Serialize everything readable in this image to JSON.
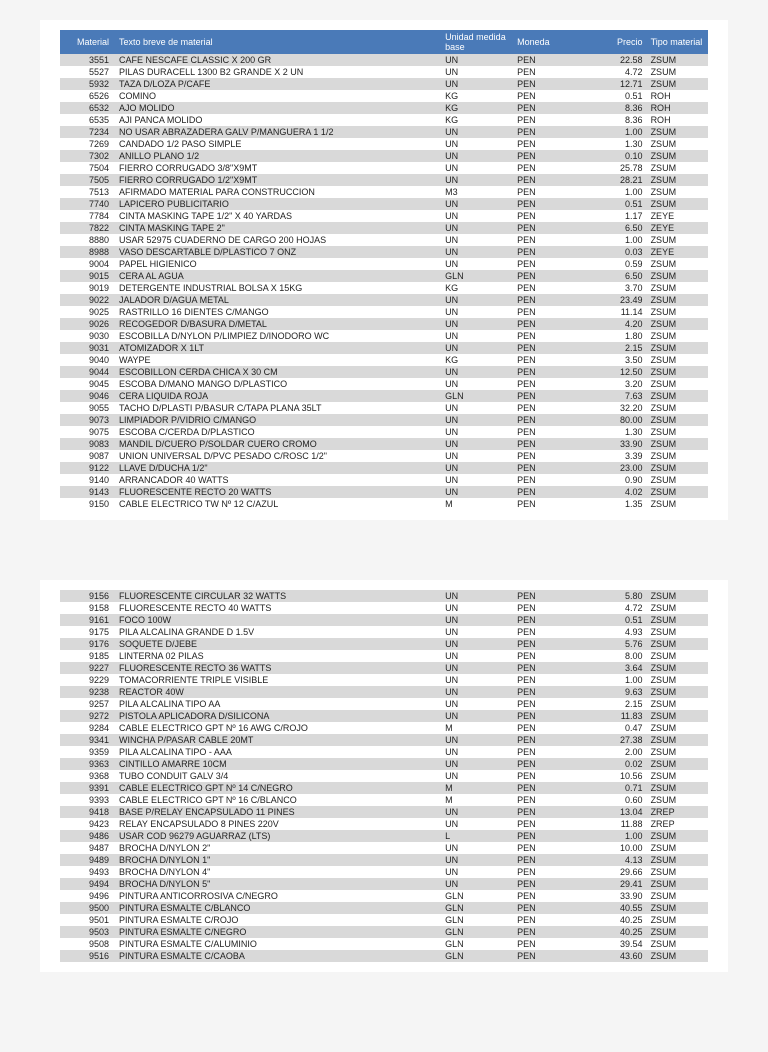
{
  "headers": {
    "material": "Material",
    "texto": "Texto breve de material",
    "unidad": "Unidad medida base",
    "moneda": "Moneda",
    "precio": "Precio",
    "tipo": "Tipo material"
  },
  "section1": [
    {
      "mat": "3551",
      "desc": "CAFE NESCAFE CLASSIC X 200 GR",
      "um": "UN",
      "mon": "PEN",
      "precio": "22.58",
      "tipo": "ZSUM"
    },
    {
      "mat": "5527",
      "desc": "PILAS DURACELL 1300 B2 GRANDE X 2 UN",
      "um": "UN",
      "mon": "PEN",
      "precio": "4.72",
      "tipo": "ZSUM"
    },
    {
      "mat": "5932",
      "desc": "TAZA D/LOZA P/CAFE",
      "um": "UN",
      "mon": "PEN",
      "precio": "12.71",
      "tipo": "ZSUM"
    },
    {
      "mat": "6526",
      "desc": "COMINO",
      "um": "KG",
      "mon": "PEN",
      "precio": "0.51",
      "tipo": "ROH"
    },
    {
      "mat": "6532",
      "desc": "AJO MOLIDO",
      "um": "KG",
      "mon": "PEN",
      "precio": "8.36",
      "tipo": "ROH"
    },
    {
      "mat": "6535",
      "desc": "AJI PANCA MOLIDO",
      "um": "KG",
      "mon": "PEN",
      "precio": "8.36",
      "tipo": "ROH"
    },
    {
      "mat": "7234",
      "desc": "NO USAR ABRAZADERA GALV P/MANGUERA 1 1/2",
      "um": "UN",
      "mon": "PEN",
      "precio": "1.00",
      "tipo": "ZSUM"
    },
    {
      "mat": "7269",
      "desc": "CANDADO 1/2 PASO SIMPLE",
      "um": "UN",
      "mon": "PEN",
      "precio": "1.30",
      "tipo": "ZSUM"
    },
    {
      "mat": "7302",
      "desc": "ANILLO PLANO 1/2",
      "um": "UN",
      "mon": "PEN",
      "precio": "0.10",
      "tipo": "ZSUM"
    },
    {
      "mat": "7504",
      "desc": "FIERRO CORRUGADO 3/8\"X9MT",
      "um": "UN",
      "mon": "PEN",
      "precio": "25.78",
      "tipo": "ZSUM"
    },
    {
      "mat": "7505",
      "desc": "FIERRO CORRUGADO 1/2\"X9MT",
      "um": "UN",
      "mon": "PEN",
      "precio": "28.21",
      "tipo": "ZSUM"
    },
    {
      "mat": "7513",
      "desc": "AFIRMADO MATERIAL PARA CONSTRUCCION",
      "um": "M3",
      "mon": "PEN",
      "precio": "1.00",
      "tipo": "ZSUM"
    },
    {
      "mat": "7740",
      "desc": "LAPICERO PUBLICITARIO",
      "um": "UN",
      "mon": "PEN",
      "precio": "0.51",
      "tipo": "ZSUM"
    },
    {
      "mat": "7784",
      "desc": "CINTA MASKING TAPE 1/2\" X 40 YARDAS",
      "um": "UN",
      "mon": "PEN",
      "precio": "1.17",
      "tipo": "ZEYE"
    },
    {
      "mat": "7822",
      "desc": "CINTA MASKING TAPE 2\"",
      "um": "UN",
      "mon": "PEN",
      "precio": "6.50",
      "tipo": "ZEYE"
    },
    {
      "mat": "8880",
      "desc": "USAR 52975 CUADERNO DE CARGO 200 HOJAS",
      "um": "UN",
      "mon": "PEN",
      "precio": "1.00",
      "tipo": "ZSUM"
    },
    {
      "mat": "8988",
      "desc": "VASO DESCARTABLE D/PLASTICO 7 ONZ",
      "um": "UN",
      "mon": "PEN",
      "precio": "0.03",
      "tipo": "ZEYE"
    },
    {
      "mat": "9004",
      "desc": "PAPEL HIGIENICO",
      "um": "UN",
      "mon": "PEN",
      "precio": "0.59",
      "tipo": "ZSUM"
    },
    {
      "mat": "9015",
      "desc": "CERA AL AGUA",
      "um": "GLN",
      "mon": "PEN",
      "precio": "6.50",
      "tipo": "ZSUM"
    },
    {
      "mat": "9019",
      "desc": "DETERGENTE INDUSTRIAL BOLSA X 15KG",
      "um": "KG",
      "mon": "PEN",
      "precio": "3.70",
      "tipo": "ZSUM"
    },
    {
      "mat": "9022",
      "desc": "JALADOR D/AGUA METAL",
      "um": "UN",
      "mon": "PEN",
      "precio": "23.49",
      "tipo": "ZSUM"
    },
    {
      "mat": "9025",
      "desc": "RASTRILLO 16 DIENTES C/MANGO",
      "um": "UN",
      "mon": "PEN",
      "precio": "11.14",
      "tipo": "ZSUM"
    },
    {
      "mat": "9026",
      "desc": "RECOGEDOR D/BASURA D/METAL",
      "um": "UN",
      "mon": "PEN",
      "precio": "4.20",
      "tipo": "ZSUM"
    },
    {
      "mat": "9030",
      "desc": "ESCOBILLA D/NYLON P/LIMPIEZ D/INODORO WC",
      "um": "UN",
      "mon": "PEN",
      "precio": "1.80",
      "tipo": "ZSUM"
    },
    {
      "mat": "9031",
      "desc": "ATOMIZADOR X 1LT",
      "um": "UN",
      "mon": "PEN",
      "precio": "2.15",
      "tipo": "ZSUM"
    },
    {
      "mat": "9040",
      "desc": "WAYPE",
      "um": "KG",
      "mon": "PEN",
      "precio": "3.50",
      "tipo": "ZSUM"
    },
    {
      "mat": "9044",
      "desc": "ESCOBILLON CERDA CHICA X 30 CM",
      "um": "UN",
      "mon": "PEN",
      "precio": "12.50",
      "tipo": "ZSUM"
    },
    {
      "mat": "9045",
      "desc": "ESCOBA D/MANO MANGO D/PLASTICO",
      "um": "UN",
      "mon": "PEN",
      "precio": "3.20",
      "tipo": "ZSUM"
    },
    {
      "mat": "9046",
      "desc": "CERA LIQUIDA ROJA",
      "um": "GLN",
      "mon": "PEN",
      "precio": "7.63",
      "tipo": "ZSUM"
    },
    {
      "mat": "9055",
      "desc": "TACHO D/PLASTI P/BASUR C/TAPA PLANA 35LT",
      "um": "UN",
      "mon": "PEN",
      "precio": "32.20",
      "tipo": "ZSUM"
    },
    {
      "mat": "9073",
      "desc": "LIMPIADOR P/VIDRIO C/MANGO",
      "um": "UN",
      "mon": "PEN",
      "precio": "80.00",
      "tipo": "ZSUM"
    },
    {
      "mat": "9075",
      "desc": "ESCOBA C/CERDA D/PLASTICO",
      "um": "UN",
      "mon": "PEN",
      "precio": "1.30",
      "tipo": "ZSUM"
    },
    {
      "mat": "9083",
      "desc": "MANDIL D/CUERO P/SOLDAR CUERO CROMO",
      "um": "UN",
      "mon": "PEN",
      "precio": "33.90",
      "tipo": "ZSUM"
    },
    {
      "mat": "9087",
      "desc": "UNION UNIVERSAL D/PVC PESADO C/ROSC 1/2\"",
      "um": "UN",
      "mon": "PEN",
      "precio": "3.39",
      "tipo": "ZSUM"
    },
    {
      "mat": "9122",
      "desc": "LLAVE D/DUCHA 1/2\"",
      "um": "UN",
      "mon": "PEN",
      "precio": "23.00",
      "tipo": "ZSUM"
    },
    {
      "mat": "9140",
      "desc": "ARRANCADOR 40 WATTS",
      "um": "UN",
      "mon": "PEN",
      "precio": "0.90",
      "tipo": "ZSUM"
    },
    {
      "mat": "9143",
      "desc": "FLUORESCENTE RECTO 20 WATTS",
      "um": "UN",
      "mon": "PEN",
      "precio": "4.02",
      "tipo": "ZSUM"
    },
    {
      "mat": "9150",
      "desc": "CABLE ELECTRICO TW Nº 12 C/AZUL",
      "um": "M",
      "mon": "PEN",
      "precio": "1.35",
      "tipo": "ZSUM"
    }
  ],
  "section2": [
    {
      "mat": "9156",
      "desc": "FLUORESCENTE CIRCULAR 32 WATTS",
      "um": "UN",
      "mon": "PEN",
      "precio": "5.80",
      "tipo": "ZSUM"
    },
    {
      "mat": "9158",
      "desc": "FLUORESCENTE RECTO 40 WATTS",
      "um": "UN",
      "mon": "PEN",
      "precio": "4.72",
      "tipo": "ZSUM"
    },
    {
      "mat": "9161",
      "desc": "FOCO 100W",
      "um": "UN",
      "mon": "PEN",
      "precio": "0.51",
      "tipo": "ZSUM"
    },
    {
      "mat": "9175",
      "desc": "PILA ALCALINA GRANDE D 1.5V",
      "um": "UN",
      "mon": "PEN",
      "precio": "4.93",
      "tipo": "ZSUM"
    },
    {
      "mat": "9176",
      "desc": "SOQUETE D/JEBE",
      "um": "UN",
      "mon": "PEN",
      "precio": "5.76",
      "tipo": "ZSUM"
    },
    {
      "mat": "9185",
      "desc": "LINTERNA 02 PILAS",
      "um": "UN",
      "mon": "PEN",
      "precio": "8.00",
      "tipo": "ZSUM"
    },
    {
      "mat": "9227",
      "desc": "FLUORESCENTE RECTO 36 WATTS",
      "um": "UN",
      "mon": "PEN",
      "precio": "3.64",
      "tipo": "ZSUM"
    },
    {
      "mat": "9229",
      "desc": "TOMACORRIENTE TRIPLE VISIBLE",
      "um": "UN",
      "mon": "PEN",
      "precio": "1.00",
      "tipo": "ZSUM"
    },
    {
      "mat": "9238",
      "desc": "REACTOR 40W",
      "um": "UN",
      "mon": "PEN",
      "precio": "9.63",
      "tipo": "ZSUM"
    },
    {
      "mat": "9257",
      "desc": "PILA ALCALINA TIPO AA",
      "um": "UN",
      "mon": "PEN",
      "precio": "2.15",
      "tipo": "ZSUM"
    },
    {
      "mat": "9272",
      "desc": "PISTOLA APLICADORA D/SILICONA",
      "um": "UN",
      "mon": "PEN",
      "precio": "11.83",
      "tipo": "ZSUM"
    },
    {
      "mat": "9284",
      "desc": "CABLE ELECTRICO GPT Nº 16 AWG C/ROJO",
      "um": "M",
      "mon": "PEN",
      "precio": "0.47",
      "tipo": "ZSUM"
    },
    {
      "mat": "9341",
      "desc": "WINCHA P/PASAR CABLE 20MT",
      "um": "UN",
      "mon": "PEN",
      "precio": "27.38",
      "tipo": "ZSUM"
    },
    {
      "mat": "9359",
      "desc": "PILA ALCALINA TIPO - AAA",
      "um": "UN",
      "mon": "PEN",
      "precio": "2.00",
      "tipo": "ZSUM"
    },
    {
      "mat": "9363",
      "desc": "CINTILLO AMARRE 10CM",
      "um": "UN",
      "mon": "PEN",
      "precio": "0.02",
      "tipo": "ZSUM"
    },
    {
      "mat": "9368",
      "desc": "TUBO CONDUIT GALV 3/4",
      "um": "UN",
      "mon": "PEN",
      "precio": "10.56",
      "tipo": "ZSUM"
    },
    {
      "mat": "9391",
      "desc": "CABLE ELECTRICO GPT Nº 14 C/NEGRO",
      "um": "M",
      "mon": "PEN",
      "precio": "0.71",
      "tipo": "ZSUM"
    },
    {
      "mat": "9393",
      "desc": "CABLE ELECTRICO GPT Nº 16 C/BLANCO",
      "um": "M",
      "mon": "PEN",
      "precio": "0.60",
      "tipo": "ZSUM"
    },
    {
      "mat": "9418",
      "desc": "BASE P/RELAY ENCAPSULADO 11 PINES",
      "um": "UN",
      "mon": "PEN",
      "precio": "13.04",
      "tipo": "ZREP"
    },
    {
      "mat": "9423",
      "desc": "RELAY ENCAPSULADO 8 PINES 220V",
      "um": "UN",
      "mon": "PEN",
      "precio": "11.88",
      "tipo": "ZREP"
    },
    {
      "mat": "9486",
      "desc": "USAR COD 96279 AGUARRAZ (LTS)",
      "um": "L",
      "mon": "PEN",
      "precio": "1.00",
      "tipo": "ZSUM"
    },
    {
      "mat": "9487",
      "desc": "BROCHA D/NYLON 2\"",
      "um": "UN",
      "mon": "PEN",
      "precio": "10.00",
      "tipo": "ZSUM"
    },
    {
      "mat": "9489",
      "desc": "BROCHA D/NYLON 1\"",
      "um": "UN",
      "mon": "PEN",
      "precio": "4.13",
      "tipo": "ZSUM"
    },
    {
      "mat": "9493",
      "desc": "BROCHA D/NYLON 4\"",
      "um": "UN",
      "mon": "PEN",
      "precio": "29.66",
      "tipo": "ZSUM"
    },
    {
      "mat": "9494",
      "desc": "BROCHA D/NYLON 5\"",
      "um": "UN",
      "mon": "PEN",
      "precio": "29.41",
      "tipo": "ZSUM"
    },
    {
      "mat": "9496",
      "desc": "PINTURA ANTICORROSIVA C/NEGRO",
      "um": "GLN",
      "mon": "PEN",
      "precio": "33.90",
      "tipo": "ZSUM"
    },
    {
      "mat": "9500",
      "desc": "PINTURA ESMALTE C/BLANCO",
      "um": "GLN",
      "mon": "PEN",
      "precio": "40.55",
      "tipo": "ZSUM"
    },
    {
      "mat": "9501",
      "desc": "PINTURA ESMALTE C/ROJO",
      "um": "GLN",
      "mon": "PEN",
      "precio": "40.25",
      "tipo": "ZSUM"
    },
    {
      "mat": "9503",
      "desc": "PINTURA ESMALTE C/NEGRO",
      "um": "GLN",
      "mon": "PEN",
      "precio": "40.25",
      "tipo": "ZSUM"
    },
    {
      "mat": "9508",
      "desc": "PINTURA ESMALTE C/ALUMINIO",
      "um": "GLN",
      "mon": "PEN",
      "precio": "39.54",
      "tipo": "ZSUM"
    },
    {
      "mat": "9516",
      "desc": "PINTURA ESMALTE C/CAOBA",
      "um": "GLN",
      "mon": "PEN",
      "precio": "43.60",
      "tipo": "ZSUM"
    }
  ]
}
